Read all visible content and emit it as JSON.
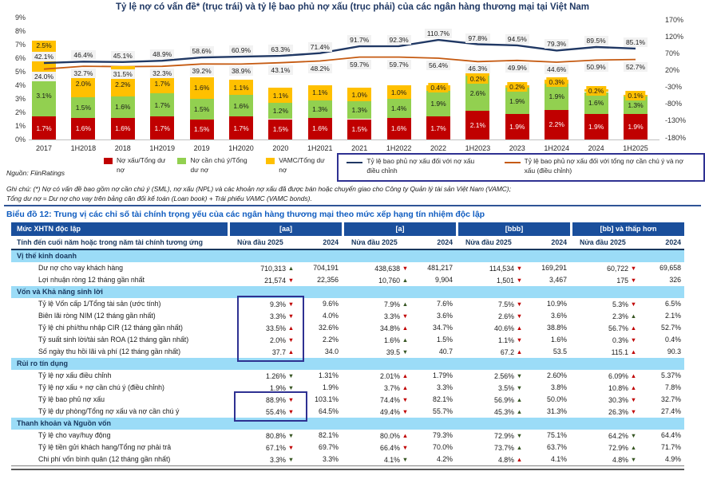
{
  "chart": {
    "title": "Tỷ lệ nợ có vấn đề* (trục trái) và tỷ lệ bao phủ nợ xấu (trục phải) của các ngân hàng thương mại tại Việt Nam",
    "left_ticks": [
      "9%",
      "8%",
      "7%",
      "6%",
      "5%",
      "4%",
      "3%",
      "2%",
      "1%",
      "0%"
    ],
    "right_ticks": [
      "170%",
      "120%",
      "70%",
      "20%",
      "-30%",
      "-80%",
      "-130%",
      "-180%"
    ],
    "legend_bars": [
      {
        "label": "Nợ xấu/Tổng dư nợ",
        "color": "#C00000"
      },
      {
        "label": "Nợ cần chú ý/Tổng dư nợ",
        "color": "#92D050"
      },
      {
        "label": "VAMC/Tổng dư nợ",
        "color": "#FFC000"
      }
    ],
    "legend_lines": [
      {
        "label": "Tỷ lệ bao phủ nợ xấu đối với nợ xấu điều chỉnh",
        "color": "#203864"
      },
      {
        "label": "Tỷ lệ bao phủ nợ xấu đối với tổng nợ cần chú ý và nợ xấu (điều chỉnh)",
        "color": "#C55A11"
      }
    ],
    "source": "Nguồn: FiinRatings",
    "note1": "Ghi chú: (*) Nợ có vấn đề bao gồm nợ cần chú ý (SML), nợ xấu (NPL) và các khoản nợ xấu đã được bán hoặc chuyển giao cho Công ty Quản lý tài sản Việt Nam (VAMC);",
    "note2": "Tổng dư nợ = Dư nợ cho vay trên bảng cân đối kế toán (Loan book) + Trái phiếu VAMC (VAMC bonds)."
  },
  "chart_data": {
    "type": "bar",
    "subtype": "stacked-bars-with-lines",
    "categories": [
      "2017",
      "1H2018",
      "2018",
      "1H2019",
      "2019",
      "1H2020",
      "2020",
      "1H2021",
      "2021",
      "1H2022",
      "2022",
      "1H2023",
      "2023",
      "1H2024",
      "2024",
      "1H2025"
    ],
    "series": [
      {
        "name": "Nợ xấu/Tổng dư nợ",
        "type": "bar",
        "color": "#C00000",
        "values": [
          1.7,
          1.6,
          1.6,
          1.7,
          1.5,
          1.7,
          1.5,
          1.6,
          1.5,
          1.6,
          1.7,
          2.1,
          1.9,
          2.2,
          1.9,
          1.9
        ]
      },
      {
        "name": "Nợ cần chú ý/Tổng dư nợ",
        "type": "bar",
        "color": "#92D050",
        "values": [
          3.1,
          1.5,
          1.6,
          1.7,
          1.5,
          1.6,
          1.2,
          1.3,
          1.3,
          1.4,
          1.9,
          2.6,
          1.9,
          1.9,
          1.6,
          1.3
        ]
      },
      {
        "name": "VAMC/Tổng dư nợ",
        "type": "bar",
        "color": "#FFC000",
        "values": [
          2.5,
          2.0,
          2.2,
          1.7,
          1.6,
          1.1,
          1.1,
          1.1,
          1.0,
          1.0,
          0.4,
          0.2,
          0.2,
          0.3,
          0.2,
          0.1
        ]
      },
      {
        "name": "Tỷ lệ bao phủ nợ xấu đối với nợ xấu điều chỉnh",
        "type": "line",
        "color": "#203864",
        "values": [
          42.1,
          46.4,
          45.1,
          48.9,
          58.6,
          60.9,
          63.3,
          71.4,
          91.7,
          92.3,
          110.7,
          97.8,
          94.5,
          79.3,
          89.5,
          85.1
        ]
      },
      {
        "name": "Tỷ lệ bao phủ nợ xấu đối với tổng nợ cần chú ý và nợ xấu (điều chỉnh)",
        "type": "line",
        "color": "#C55A11",
        "values": [
          24.0,
          32.7,
          31.5,
          32.3,
          39.2,
          38.9,
          43.1,
          48.2,
          59.7,
          59.7,
          56.4,
          46.3,
          49.9,
          44.6,
          50.9,
          52.7
        ]
      }
    ],
    "left_axis": {
      "label": "trục trái",
      "ylim": [
        0,
        9
      ],
      "unit": "%"
    },
    "right_axis": {
      "label": "trục phải",
      "ylim": [
        -180,
        170
      ],
      "unit": "%"
    },
    "grid": false,
    "legend_position": "bottom"
  },
  "table": {
    "title": "Biểu đồ 12: Trung vị các chỉ số tài chính trọng yếu của các ngân hàng thương mại theo mức xếp hạng tín nhiệm độc lập",
    "header_label": "Mức XHTN độc lập",
    "subheader_label": "Tính đến cuối năm hoặc trong năm tài chính tương ứng",
    "groups": [
      "[aa]",
      "[a]",
      "[bbb]",
      "[bb] và thấp hơn"
    ],
    "period_h1": "Nửa đầu 2025",
    "period_fy": "2024",
    "sections": [
      {
        "name": "Vị thế kinh doanh",
        "rows": [
          {
            "label": "Dư nợ cho vay khách hàng",
            "cells": [
              [
                "710,313",
                "up",
                "g"
              ],
              [
                "704,191"
              ],
              [
                "438,638",
                "down",
                "b"
              ],
              [
                "481,217"
              ],
              [
                "114,534",
                "down",
                "b"
              ],
              [
                "169,291"
              ],
              [
                "60,722",
                "down",
                "b"
              ],
              [
                "69,658"
              ]
            ]
          },
          {
            "label": "Lợi nhuận ròng 12 tháng gần nhất",
            "cells": [
              [
                "21,574",
                "down",
                "b"
              ],
              [
                "22,356"
              ],
              [
                "10,760",
                "up",
                "g"
              ],
              [
                "9,904"
              ],
              [
                "1,501",
                "down",
                "b"
              ],
              [
                "3,467"
              ],
              [
                "175",
                "down",
                "b"
              ],
              [
                "326"
              ]
            ]
          }
        ]
      },
      {
        "name": "Vốn và Khả năng sinh lời",
        "rows": [
          {
            "label": "Tỷ lệ Vốn cấp 1/Tổng tài sản (ước tính)",
            "cells": [
              [
                "9.3%",
                "down",
                "b"
              ],
              [
                "9.6%"
              ],
              [
                "7.9%",
                "up",
                "g"
              ],
              [
                "7.6%"
              ],
              [
                "7.5%",
                "down",
                "b"
              ],
              [
                "10.9%"
              ],
              [
                "5.3%",
                "down",
                "b"
              ],
              [
                "6.5%"
              ]
            ]
          },
          {
            "label": "Biên lãi ròng NIM (12 tháng gần nhất)",
            "cells": [
              [
                "3.3%",
                "down",
                "b"
              ],
              [
                "4.0%"
              ],
              [
                "3.3%",
                "down",
                "b"
              ],
              [
                "3.6%"
              ],
              [
                "2.6%",
                "down",
                "b"
              ],
              [
                "3.6%"
              ],
              [
                "2.3%",
                "up",
                "g"
              ],
              [
                "2.1%"
              ]
            ]
          },
          {
            "label": "Tỷ lệ chi phí/thu nhập CIR (12 tháng gần nhất)",
            "cells": [
              [
                "33.5%",
                "up",
                "b"
              ],
              [
                "32.6%"
              ],
              [
                "34.8%",
                "up",
                "b"
              ],
              [
                "34.7%"
              ],
              [
                "40.6%",
                "up",
                "b"
              ],
              [
                "38.8%"
              ],
              [
                "56.7%",
                "up",
                "b"
              ],
              [
                "52.7%"
              ]
            ]
          },
          {
            "label": "Tỷ suất sinh lời/tài sản ROA (12 tháng gần nhất)",
            "cells": [
              [
                "2.0%",
                "down",
                "b"
              ],
              [
                "2.2%"
              ],
              [
                "1.6%",
                "up",
                "g"
              ],
              [
                "1.5%"
              ],
              [
                "1.1%",
                "down",
                "b"
              ],
              [
                "1.6%"
              ],
              [
                "0.3%",
                "down",
                "b"
              ],
              [
                "0.4%"
              ]
            ]
          },
          {
            "label": "Số ngày thu hồi lãi và phí (12 tháng gần nhất)",
            "cells": [
              [
                "37.7",
                "up",
                "b"
              ],
              [
                "34.0"
              ],
              [
                "39.5",
                "down",
                "g"
              ],
              [
                "40.7"
              ],
              [
                "67.2",
                "up",
                "b"
              ],
              [
                "53.5"
              ],
              [
                "115.1",
                "up",
                "b"
              ],
              [
                "90.3"
              ]
            ]
          }
        ]
      },
      {
        "name": "Rủi ro tín dụng",
        "rows": [
          {
            "label": "Tỷ lệ nợ xấu điều chỉnh",
            "cells": [
              [
                "1.26%",
                "down",
                "g"
              ],
              [
                "1.31%"
              ],
              [
                "2.01%",
                "up",
                "b"
              ],
              [
                "1.79%"
              ],
              [
                "2.56%",
                "down",
                "g"
              ],
              [
                "2.60%"
              ],
              [
                "6.09%",
                "up",
                "b"
              ],
              [
                "5.37%"
              ]
            ]
          },
          {
            "label": "Tỷ lệ nợ xấu + nợ cần chú ý (điều chỉnh)",
            "cells": [
              [
                "1.9%",
                "down",
                "g"
              ],
              [
                "1.9%"
              ],
              [
                "3.7%",
                "up",
                "b"
              ],
              [
                "3.3%"
              ],
              [
                "3.5%",
                "down",
                "g"
              ],
              [
                "3.8%"
              ],
              [
                "10.8%",
                "up",
                "b"
              ],
              [
                "7.8%"
              ]
            ]
          },
          {
            "label": "Tỷ lệ bao phủ nợ xấu",
            "cells": [
              [
                "88.9%",
                "down",
                "b"
              ],
              [
                "103.1%"
              ],
              [
                "74.4%",
                "down",
                "b"
              ],
              [
                "82.1%"
              ],
              [
                "56.9%",
                "up",
                "g"
              ],
              [
                "50.0%"
              ],
              [
                "30.3%",
                "down",
                "b"
              ],
              [
                "32.7%"
              ]
            ]
          },
          {
            "label": "Tỷ lệ dự phòng/Tổng nợ xấu và nợ cần chú ý",
            "cells": [
              [
                "55.4%",
                "down",
                "b"
              ],
              [
                "64.5%"
              ],
              [
                "49.4%",
                "down",
                "b"
              ],
              [
                "55.7%"
              ],
              [
                "45.3%",
                "up",
                "g"
              ],
              [
                "31.3%"
              ],
              [
                "26.3%",
                "down",
                "b"
              ],
              [
                "27.4%"
              ]
            ]
          }
        ]
      },
      {
        "name": "Thanh khoản và Nguồn vốn",
        "rows": [
          {
            "label": "Tỷ lệ cho vay/huy động",
            "cells": [
              [
                "80.8%",
                "down",
                "g"
              ],
              [
                "82.1%"
              ],
              [
                "80.0%",
                "up",
                "b"
              ],
              [
                "79.3%"
              ],
              [
                "72.9%",
                "down",
                "g"
              ],
              [
                "75.1%"
              ],
              [
                "64.2%",
                "down",
                "g"
              ],
              [
                "64.4%"
              ]
            ]
          },
          {
            "label": "Tỷ lệ tiền gửi khách hang/Tổng nợ phải trả",
            "cells": [
              [
                "67.1%",
                "down",
                "b"
              ],
              [
                "69.7%"
              ],
              [
                "66.4%",
                "down",
                "b"
              ],
              [
                "70.0%"
              ],
              [
                "73.7%",
                "up",
                "g"
              ],
              [
                "63.7%"
              ],
              [
                "72.9%",
                "up",
                "g"
              ],
              [
                "71.7%"
              ]
            ]
          },
          {
            "label": "Chi phí vốn bình quân (12 tháng gần nhất)",
            "cells": [
              [
                "3.3%",
                "down",
                "g"
              ],
              [
                "3.3%"
              ],
              [
                "4.1%",
                "down",
                "g"
              ],
              [
                "4.2%"
              ],
              [
                "4.8%",
                "up",
                "b"
              ],
              [
                "4.1%"
              ],
              [
                "4.8%",
                "down",
                "g"
              ],
              [
                "4.9%"
              ]
            ]
          }
        ]
      }
    ]
  },
  "colors": {
    "npl_bar": "#C00000",
    "sml_bar": "#92D050",
    "vamc_bar": "#FFC000",
    "line_blue": "#203864",
    "line_orange": "#C55A11",
    "header_navy": "#1A4F9C",
    "section_cyan": "#9BDCF7",
    "arrow_good": "#375623",
    "arrow_bad": "#C00000",
    "highlight_border": "#2E3192",
    "title_navy": "#1F3864",
    "table_title_blue": "#0F5CC0"
  }
}
